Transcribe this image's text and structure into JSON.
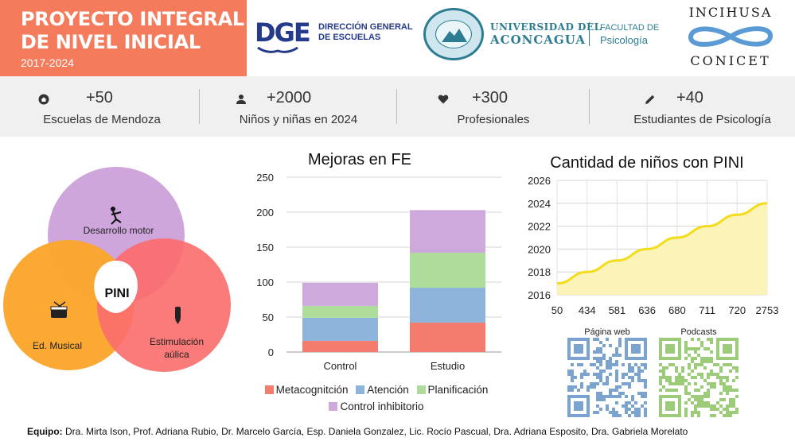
{
  "header": {
    "title_line1": "PROYECTO INTEGRAL",
    "title_line2": "DE NIVEL INICIAL",
    "years": "2017-2024",
    "logos": {
      "dge_mark": "DGE",
      "dge_text_line1": "DIRECCIÓN GENERAL",
      "dge_text_line2": "DE ESCUELAS",
      "uda_line1": "UNIVERSIDAD DEL",
      "uda_line2": "ACONCAGUA",
      "fac_line1": "FACULTAD DE",
      "fac_line2": "Psicología",
      "inci_top": "INCIHUSA",
      "inci_bottom": "CONICET"
    }
  },
  "stats": [
    {
      "icon": "home-icon",
      "value": "+50",
      "label": "Escuelas de Mendoza"
    },
    {
      "icon": "person-icon",
      "value": "+2000",
      "label": "Niños y niñas en 2024"
    },
    {
      "icon": "heart-icon",
      "value": "+300",
      "label": "Profesionales"
    },
    {
      "icon": "pencil-icon",
      "value": "+40",
      "label": "Estudiantes de Psicología"
    }
  ],
  "venn": {
    "center": "PINI",
    "top": "Desarrollo motor",
    "left": "Ed. Musical",
    "right_line1": "Estimulación",
    "right_line2": "aúlica",
    "colors": {
      "top": "#cfa6dc",
      "left": "#fba52b",
      "right": "#fb6b6b"
    }
  },
  "chart_data": [
    {
      "type": "bar",
      "stacked": true,
      "title": "Mejoras en FE",
      "categories": [
        "Control",
        "Estudio"
      ],
      "series": [
        {
          "name": "Metacognitción",
          "color": "#f47c6c",
          "values": [
            16,
            42
          ]
        },
        {
          "name": "Atención",
          "color": "#8fb4db",
          "values": [
            33,
            50
          ]
        },
        {
          "name": "Planificación",
          "color": "#aedc9b",
          "values": [
            17,
            50
          ]
        },
        {
          "name": "Control inhibitorio",
          "color": "#cdaadb",
          "values": [
            33,
            61
          ]
        }
      ],
      "ylim": [
        0,
        250
      ],
      "yticks": [
        "0",
        "50",
        "100",
        "150",
        "200",
        "250"
      ],
      "grid": true,
      "legend": "bottom"
    },
    {
      "type": "area",
      "title": "Cantidad de niños con PINI",
      "x": [
        "50",
        "434",
        "581",
        "636",
        "680",
        "711",
        "720",
        "2753"
      ],
      "y": [
        2017,
        2018,
        2019,
        2020,
        2021,
        2022,
        2023,
        2024
      ],
      "ylim": [
        2016,
        2026
      ],
      "yticks": [
        "2016",
        "2018",
        "2020",
        "2022",
        "2024",
        "2026"
      ],
      "line_color": "#f2dc1c",
      "fill_color": "#fbf3b8",
      "grid": true
    }
  ],
  "qr": {
    "web_label": "Página web",
    "podcast_label": "Podcasts",
    "web_color": "#7aa3cf",
    "podcast_color": "#9ccc7a"
  },
  "footer": {
    "label": "Equipo:",
    "team": "Dra. Mirta Ison, Prof. Adriana Rubio, Dr. Marcelo García, Esp. Daniela Gonzalez, Lic. Rocío Pascual, Dra. Adriana Esposito, Dra. Gabriela Morelato"
  }
}
